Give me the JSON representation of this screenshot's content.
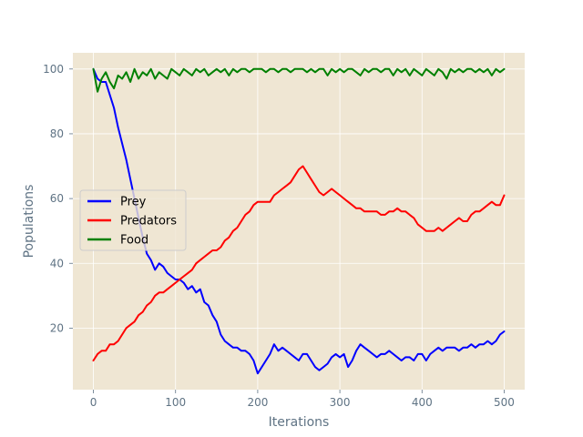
{
  "chart_data": {
    "type": "line",
    "title": "",
    "xlabel": "Iterations",
    "ylabel": "Populations",
    "xlim": [
      -25,
      525
    ],
    "ylim": [
      1,
      105
    ],
    "xticks": [
      0,
      100,
      200,
      300,
      400,
      500
    ],
    "yticks": [
      20,
      40,
      60,
      80,
      100
    ],
    "grid": true,
    "legend_position": "center-left",
    "background_color": "#efe6d3",
    "grid_color": "#ffffff",
    "series": [
      {
        "name": "Prey",
        "color": "#0000ff",
        "x": [
          0,
          5,
          10,
          15,
          20,
          25,
          30,
          35,
          40,
          45,
          50,
          55,
          60,
          65,
          70,
          75,
          80,
          85,
          90,
          95,
          100,
          105,
          110,
          115,
          120,
          125,
          130,
          135,
          140,
          145,
          150,
          155,
          160,
          165,
          170,
          175,
          180,
          185,
          190,
          195,
          200,
          205,
          210,
          215,
          220,
          225,
          230,
          235,
          240,
          245,
          250,
          255,
          260,
          265,
          270,
          275,
          280,
          285,
          290,
          295,
          300,
          305,
          310,
          315,
          320,
          325,
          330,
          335,
          340,
          345,
          350,
          355,
          360,
          365,
          370,
          375,
          380,
          385,
          390,
          395,
          400,
          405,
          410,
          415,
          420,
          425,
          430,
          435,
          440,
          445,
          450,
          455,
          460,
          465,
          470,
          475,
          480,
          485,
          490,
          495,
          500
        ],
        "values": [
          100,
          97,
          96,
          96,
          92,
          88,
          82,
          77,
          72,
          66,
          60,
          54,
          48,
          43,
          41,
          38,
          40,
          39,
          37,
          36,
          35,
          35,
          34,
          32,
          33,
          31,
          32,
          28,
          27,
          24,
          22,
          18,
          16,
          15,
          14,
          14,
          13,
          13,
          12,
          10,
          6,
          8,
          10,
          12,
          15,
          13,
          14,
          13,
          12,
          11,
          10,
          12,
          12,
          10,
          8,
          7,
          8,
          9,
          11,
          12,
          11,
          12,
          8,
          10,
          13,
          15,
          14,
          13,
          12,
          11,
          12,
          12,
          13,
          12,
          11,
          10,
          11,
          11,
          10,
          12,
          12,
          10,
          12,
          13,
          14,
          13,
          14,
          14,
          14,
          13,
          14,
          14,
          15,
          14,
          15,
          15,
          16,
          15,
          16,
          18,
          19
        ]
      },
      {
        "name": "Predators",
        "color": "#ff0000",
        "x": [
          0,
          5,
          10,
          15,
          20,
          25,
          30,
          35,
          40,
          45,
          50,
          55,
          60,
          65,
          70,
          75,
          80,
          85,
          90,
          95,
          100,
          105,
          110,
          115,
          120,
          125,
          130,
          135,
          140,
          145,
          150,
          155,
          160,
          165,
          170,
          175,
          180,
          185,
          190,
          195,
          200,
          205,
          210,
          215,
          220,
          225,
          230,
          235,
          240,
          245,
          250,
          255,
          260,
          265,
          270,
          275,
          280,
          285,
          290,
          295,
          300,
          305,
          310,
          315,
          320,
          325,
          330,
          335,
          340,
          345,
          350,
          355,
          360,
          365,
          370,
          375,
          380,
          385,
          390,
          395,
          400,
          405,
          410,
          415,
          420,
          425,
          430,
          435,
          440,
          445,
          450,
          455,
          460,
          465,
          470,
          475,
          480,
          485,
          490,
          495,
          500
        ],
        "values": [
          10,
          12,
          13,
          13,
          15,
          15,
          16,
          18,
          20,
          21,
          22,
          24,
          25,
          27,
          28,
          30,
          31,
          31,
          32,
          33,
          34,
          35,
          36,
          37,
          38,
          40,
          41,
          42,
          43,
          44,
          44,
          45,
          47,
          48,
          50,
          51,
          53,
          55,
          56,
          58,
          59,
          59,
          59,
          59,
          61,
          62,
          63,
          64,
          65,
          67,
          69,
          70,
          68,
          66,
          64,
          62,
          61,
          62,
          63,
          62,
          61,
          60,
          59,
          58,
          57,
          57,
          56,
          56,
          56,
          56,
          55,
          55,
          56,
          56,
          57,
          56,
          56,
          55,
          54,
          52,
          51,
          50,
          50,
          50,
          51,
          50,
          51,
          52,
          53,
          54,
          53,
          53,
          55,
          56,
          56,
          57,
          58,
          59,
          58,
          58,
          61
        ]
      },
      {
        "name": "Food",
        "color": "#008000",
        "x": [
          0,
          5,
          10,
          15,
          20,
          25,
          30,
          35,
          40,
          45,
          50,
          55,
          60,
          65,
          70,
          75,
          80,
          85,
          90,
          95,
          100,
          105,
          110,
          115,
          120,
          125,
          130,
          135,
          140,
          145,
          150,
          155,
          160,
          165,
          170,
          175,
          180,
          185,
          190,
          195,
          200,
          205,
          210,
          215,
          220,
          225,
          230,
          235,
          240,
          245,
          250,
          255,
          260,
          265,
          270,
          275,
          280,
          285,
          290,
          295,
          300,
          305,
          310,
          315,
          320,
          325,
          330,
          335,
          340,
          345,
          350,
          355,
          360,
          365,
          370,
          375,
          380,
          385,
          390,
          395,
          400,
          405,
          410,
          415,
          420,
          425,
          430,
          435,
          440,
          445,
          450,
          455,
          460,
          465,
          470,
          475,
          480,
          485,
          490,
          495,
          500
        ],
        "values": [
          100,
          93,
          97,
          99,
          96,
          94,
          98,
          97,
          99,
          96,
          100,
          97,
          99,
          98,
          100,
          97,
          99,
          98,
          97,
          100,
          99,
          98,
          100,
          99,
          98,
          100,
          99,
          100,
          98,
          99,
          100,
          99,
          100,
          98,
          100,
          99,
          100,
          100,
          99,
          100,
          100,
          100,
          99,
          100,
          100,
          99,
          100,
          100,
          99,
          100,
          100,
          100,
          99,
          100,
          99,
          100,
          100,
          98,
          100,
          99,
          100,
          99,
          100,
          100,
          99,
          98,
          100,
          99,
          100,
          100,
          99,
          100,
          100,
          98,
          100,
          99,
          100,
          98,
          100,
          99,
          98,
          100,
          99,
          98,
          100,
          99,
          97,
          100,
          99,
          100,
          99,
          100,
          100,
          99,
          100,
          99,
          100,
          98,
          100,
          99,
          100
        ]
      }
    ]
  }
}
